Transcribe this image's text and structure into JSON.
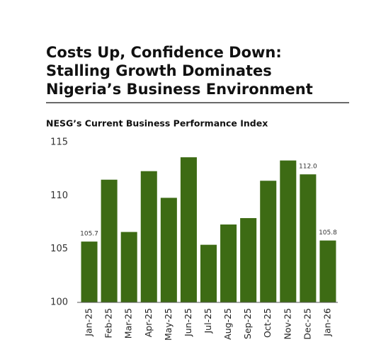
{
  "chart_data": {
    "type": "bar",
    "title": [
      "Costs Up, Confidence Down:",
      "Stalling Growth Dominates",
      "Nigeria’s Business Environment"
    ],
    "subtitle": "NESG’s Current Business Performance Index",
    "categories": [
      "Jan-25",
      "Feb-25",
      "Mar-25",
      "Apr-25",
      "May-25",
      "Jun-25",
      "Jul-25",
      "Aug-25",
      "Sep-25",
      "Oct-25",
      "Nov-25",
      "Dec-25",
      "Jan-26"
    ],
    "values": [
      105.7,
      111.5,
      106.6,
      112.3,
      109.8,
      113.6,
      105.4,
      107.3,
      107.9,
      111.4,
      113.3,
      112.0,
      105.8
    ],
    "value_labels": [
      "105.7",
      null,
      null,
      null,
      null,
      null,
      null,
      null,
      null,
      null,
      null,
      "112.0",
      "105.8"
    ],
    "color": "#3d6b14",
    "ylim": [
      100,
      115
    ],
    "yticks": [
      100,
      105,
      110,
      115
    ],
    "grid": false
  }
}
